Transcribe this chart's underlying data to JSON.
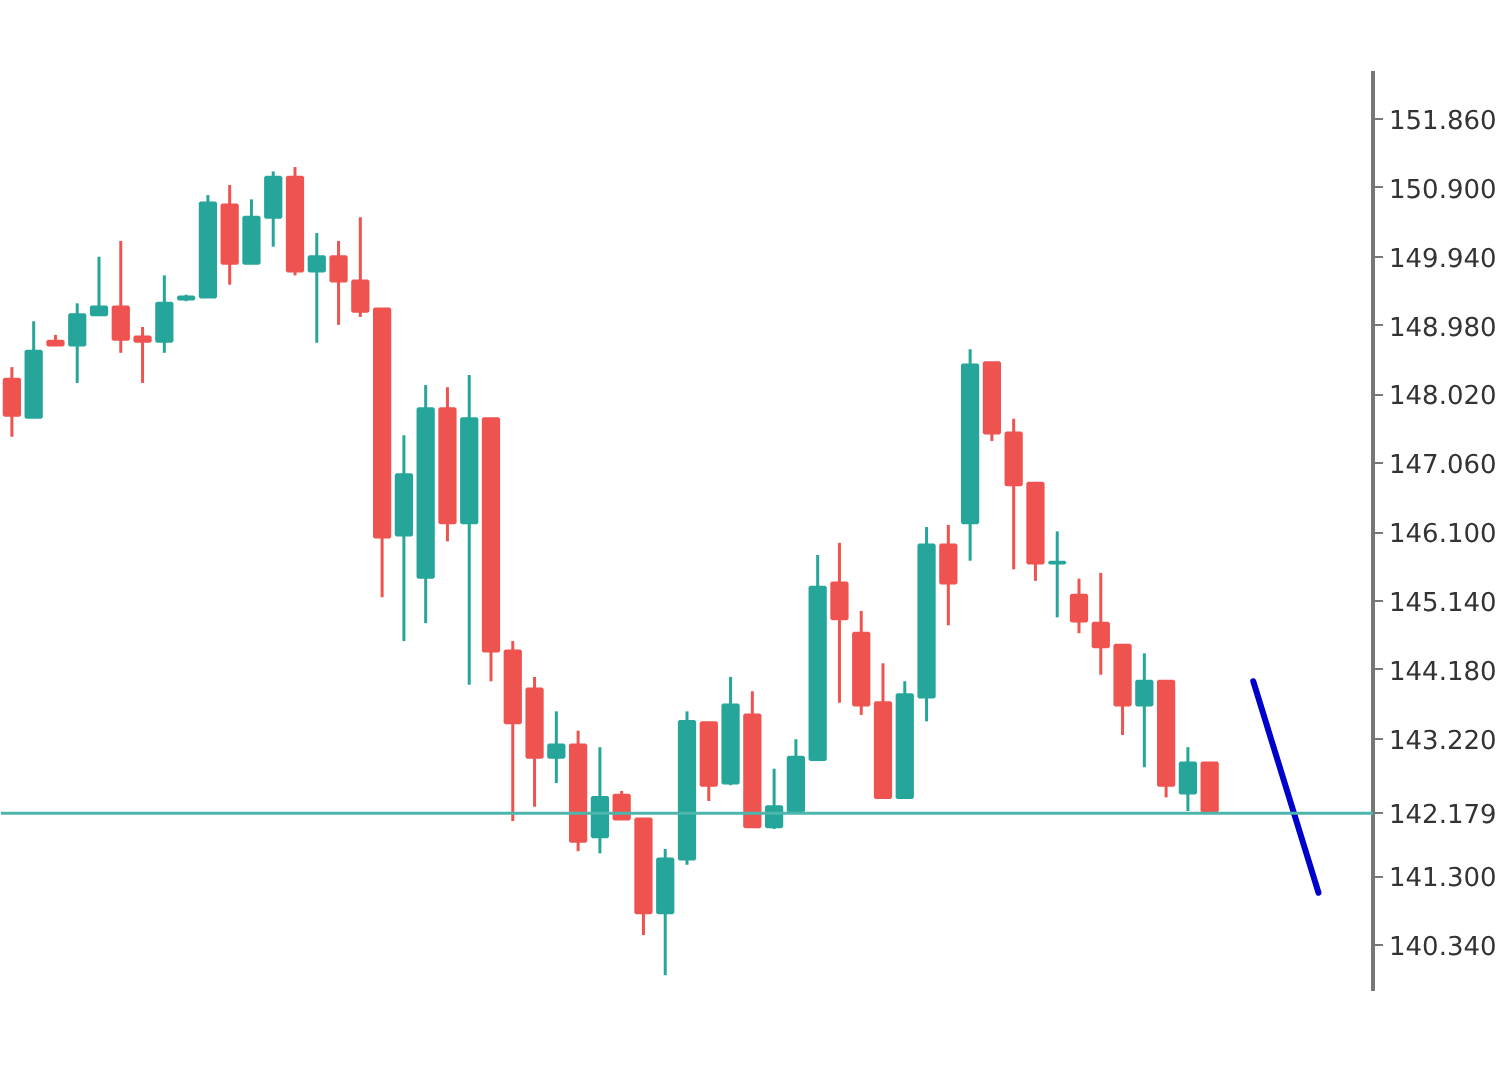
{
  "chart_data": {
    "type": "candlestick",
    "categories": [
      null,
      null,
      null,
      null,
      null,
      null,
      null,
      null,
      null,
      null,
      null,
      null,
      null,
      null,
      null,
      null,
      null,
      null,
      null,
      null,
      null,
      null,
      null,
      null,
      null,
      null,
      null,
      null,
      null,
      null,
      null,
      null,
      null,
      null,
      null,
      null,
      null,
      null,
      null,
      null,
      null,
      null,
      null,
      null,
      null,
      null,
      null,
      null,
      null,
      null,
      null,
      null,
      null,
      null,
      null,
      null,
      null,
      null,
      null,
      null,
      null,
      null,
      null
    ],
    "ohlc": [
      [
        148.23,
        148.4,
        147.43,
        147.73
      ],
      [
        147.7,
        149.04,
        147.7,
        148.62
      ],
      [
        148.76,
        148.85,
        148.71,
        148.71
      ],
      [
        148.71,
        149.29,
        148.18,
        149.13
      ],
      [
        149.13,
        149.94,
        149.13,
        149.24
      ],
      [
        149.24,
        150.16,
        148.6,
        148.79
      ],
      [
        148.82,
        148.96,
        148.18,
        148.76
      ],
      [
        148.76,
        149.68,
        148.6,
        149.29
      ],
      [
        149.35,
        149.41,
        149.32,
        149.38
      ],
      [
        149.38,
        150.8,
        149.38,
        150.69
      ],
      [
        150.66,
        150.94,
        149.55,
        149.85
      ],
      [
        149.85,
        150.74,
        149.85,
        150.49
      ],
      [
        150.49,
        151.13,
        150.08,
        151.05
      ],
      [
        151.05,
        151.19,
        149.68,
        149.74
      ],
      [
        149.74,
        150.27,
        148.74,
        149.94
      ],
      [
        149.94,
        150.16,
        148.99,
        149.6
      ],
      [
        149.6,
        150.49,
        149.1,
        149.18
      ],
      [
        149.21,
        149.21,
        145.19,
        146.03
      ],
      [
        146.06,
        147.45,
        144.58,
        146.9
      ],
      [
        145.47,
        148.15,
        144.83,
        147.82
      ],
      [
        147.82,
        148.12,
        145.97,
        146.23
      ],
      [
        146.23,
        148.29,
        143.97,
        147.68
      ],
      [
        147.68,
        147.68,
        144.02,
        144.44
      ],
      [
        144.44,
        144.58,
        142.07,
        143.44
      ],
      [
        143.91,
        144.08,
        142.27,
        142.96
      ],
      [
        142.96,
        143.6,
        142.6,
        143.13
      ],
      [
        143.13,
        143.33,
        141.65,
        141.79
      ],
      [
        141.85,
        143.1,
        141.62,
        142.4
      ],
      [
        142.43,
        142.49,
        142.1,
        142.1
      ],
      [
        142.1,
        142.1,
        140.48,
        140.79
      ],
      [
        140.79,
        141.68,
        139.92,
        141.54
      ],
      [
        141.54,
        143.6,
        141.46,
        143.46
      ],
      [
        143.44,
        143.44,
        142.35,
        142.57
      ],
      [
        142.6,
        144.08,
        142.57,
        143.69
      ],
      [
        143.55,
        143.88,
        141.99,
        141.99
      ],
      [
        141.99,
        142.8,
        141.96,
        142.27
      ],
      [
        142.21,
        143.21,
        142.21,
        142.96
      ],
      [
        142.93,
        145.78,
        142.93,
        145.33
      ],
      [
        145.39,
        145.95,
        143.72,
        144.89
      ],
      [
        144.69,
        145.0,
        143.55,
        143.69
      ],
      [
        143.72,
        144.27,
        142.4,
        142.4
      ],
      [
        142.4,
        144.02,
        142.4,
        143.83
      ],
      [
        143.8,
        146.17,
        143.46,
        145.92
      ],
      [
        145.92,
        146.2,
        144.8,
        145.39
      ],
      [
        146.23,
        148.65,
        145.7,
        148.43
      ],
      [
        148.46,
        148.46,
        147.37,
        147.48
      ],
      [
        147.48,
        147.68,
        145.58,
        146.76
      ],
      [
        146.78,
        146.78,
        145.42,
        145.67
      ],
      [
        145.67,
        146.11,
        144.91,
        145.68
      ],
      [
        145.22,
        145.45,
        144.69,
        144.86
      ],
      [
        144.83,
        145.53,
        144.11,
        144.5
      ],
      [
        144.52,
        144.52,
        143.27,
        143.69
      ],
      [
        143.69,
        144.41,
        142.82,
        144.02
      ],
      [
        144.02,
        144.02,
        142.4,
        142.57
      ],
      [
        142.46,
        143.1,
        142.21,
        142.88
      ],
      [
        142.88,
        142.88,
        142.18,
        142.21
      ],
      null,
      null,
      null,
      null,
      null,
      null,
      null
    ],
    "colors": [
      "#ef5350",
      "#26a69a",
      "#ef5350",
      "#26a69a",
      "#26a69a",
      "#ef5350",
      "#ef5350",
      "#26a69a",
      "#26a69a",
      "#26a69a",
      "#ef5350",
      "#26a69a",
      "#26a69a",
      "#ef5350",
      "#26a69a",
      "#ef5350",
      "#ef5350",
      "#ef5350",
      "#26a69a",
      "#26a69a",
      "#ef5350",
      "#26a69a",
      "#ef5350",
      "#ef5350",
      "#ef5350",
      "#26a69a",
      "#ef5350",
      "#26a69a",
      "#ef5350",
      "#ef5350",
      "#26a69a",
      "#26a69a",
      "#ef5350",
      "#26a69a",
      "#ef5350",
      "#26a69a",
      "#26a69a",
      "#26a69a",
      "#ef5350",
      "#ef5350",
      "#ef5350",
      "#26a69a",
      "#26a69a",
      "#ef5350",
      "#26a69a",
      "#ef5350",
      "#ef5350",
      "#ef5350",
      "#26a69a",
      "#ef5350",
      "#ef5350",
      "#ef5350",
      "#26a69a",
      "#ef5350",
      "#26a69a",
      "#ef5350",
      null,
      null,
      null,
      null,
      null,
      null,
      null
    ],
    "series": [
      {
        "type": "line",
        "values": [
          null,
          null,
          null,
          null,
          null,
          null,
          null,
          null,
          null,
          null,
          null,
          null,
          null,
          null,
          null,
          null,
          null,
          null,
          null,
          null,
          null,
          null,
          null,
          null,
          null,
          null,
          null,
          null,
          null,
          null,
          null,
          null,
          null,
          null,
          null,
          null,
          null,
          null,
          null,
          null,
          null,
          null,
          null,
          null,
          null,
          null,
          null,
          null,
          null,
          null,
          null,
          null,
          null,
          null,
          null,
          null,
          null,
          144.02,
          null,
          null,
          141.07,
          null,
          null
        ],
        "color": "#0000cc"
      }
    ],
    "ylim": [
      139.7,
      152.53
    ],
    "yticks": [
      {
        "value": 151.86,
        "label": "151.860"
      },
      {
        "value": 150.9,
        "label": "150.900"
      },
      {
        "value": 149.94,
        "label": "149.940"
      },
      {
        "value": 148.98,
        "label": "148.980"
      },
      {
        "value": 148.02,
        "label": "148.020"
      },
      {
        "value": 147.06,
        "label": "147.060"
      },
      {
        "value": 146.1,
        "label": "146.100"
      },
      {
        "value": 145.14,
        "label": "145.140"
      },
      {
        "value": 144.18,
        "label": "144.180"
      },
      {
        "value": 143.22,
        "label": "143.220"
      },
      {
        "value": 141.3,
        "label": "141.300"
      },
      {
        "value": 140.34,
        "label": "140.340"
      }
    ],
    "ref_lines": [
      {
        "axis": "y",
        "value": 142.179,
        "label": "142.179",
        "color": "#4db6ac"
      }
    ],
    "tick_labels": "y",
    "grid": false
  }
}
